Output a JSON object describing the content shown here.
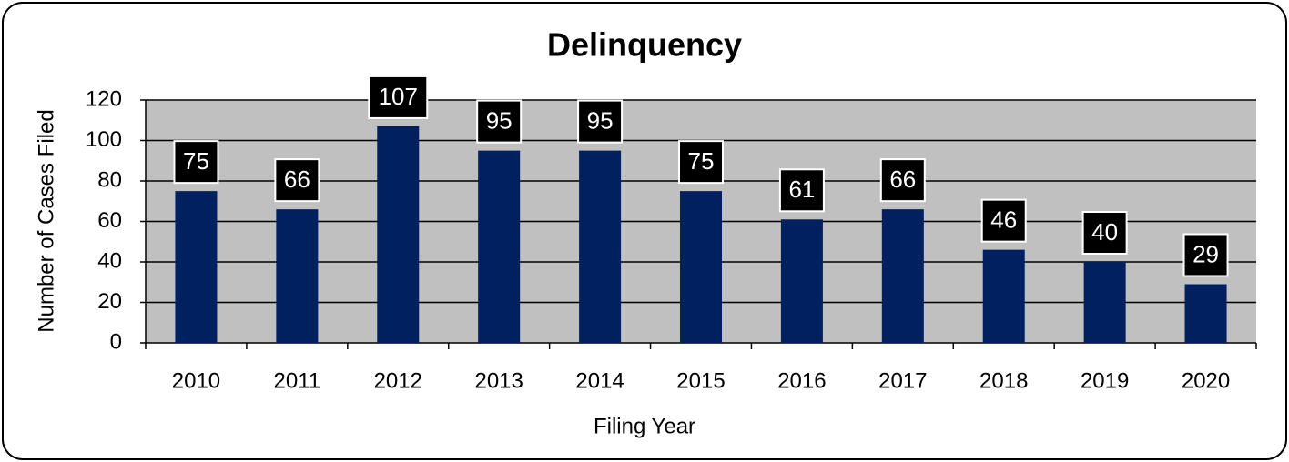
{
  "chart_data": {
    "type": "bar",
    "title": "Delinquency",
    "x_label": "Filing Year",
    "y_label": "Number of Cases Filed",
    "categories": [
      "2010",
      "2011",
      "2012",
      "2013",
      "2014",
      "2015",
      "2016",
      "2017",
      "2018",
      "2019",
      "2020"
    ],
    "values": [
      75,
      66,
      107,
      95,
      95,
      75,
      61,
      66,
      46,
      40,
      29
    ],
    "color": "#002060",
    "ylim": [
      0,
      120
    ],
    "yticks": [
      0,
      20,
      40,
      60,
      80,
      100,
      120
    ],
    "grid": true
  }
}
